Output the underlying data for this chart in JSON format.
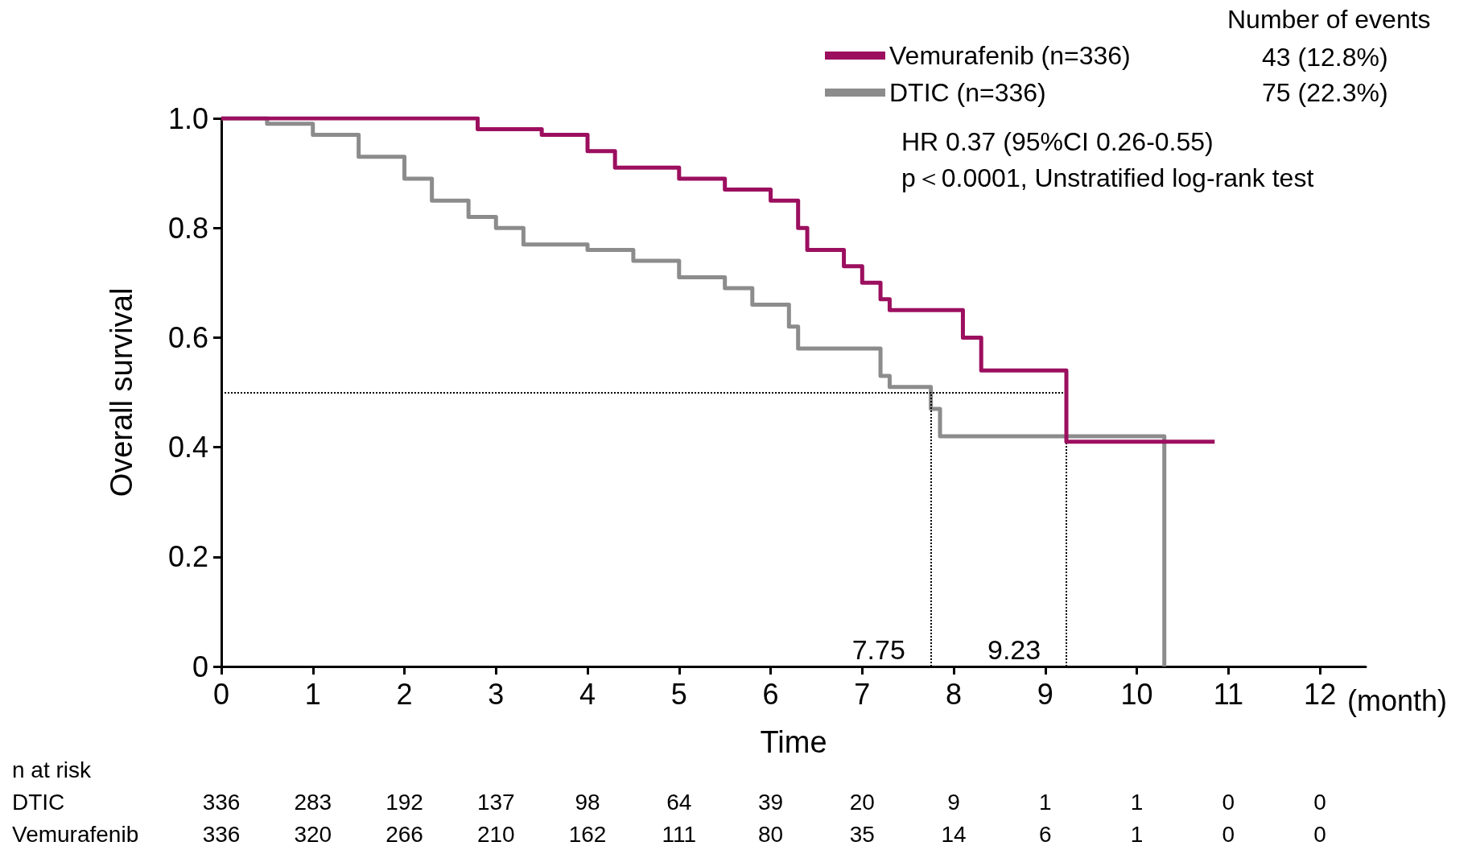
{
  "chart_data": {
    "type": "step",
    "xlabel": "Time",
    "ylabel": "Overall survival",
    "xlim": [
      0,
      12.5
    ],
    "xticks": [
      0,
      1,
      2,
      3,
      4,
      5,
      6,
      7,
      8,
      9,
      10,
      11,
      12
    ],
    "ylim": [
      0,
      1
    ],
    "yticks": [
      0,
      0.2,
      0.4,
      0.6,
      0.8,
      {
        "value": 1,
        "label": "1.0"
      }
    ],
    "grid": false,
    "legend": "top right",
    "marker": "none",
    "line_style": "solid",
    "series": [
      {
        "name": "Vemurafenib (n=336)",
        "color": "#9c0f5f",
        "x": [
          0,
          2.6,
          2.8,
          3.5,
          4,
          4.3,
          5,
          5.5,
          6,
          6.3,
          6.4,
          6.8,
          7,
          7.2,
          7.3,
          8.1,
          8.3,
          9.23,
          10.85
        ],
        "values": [
          1,
          1,
          0.98,
          0.97,
          0.94,
          0.91,
          0.89,
          0.87,
          0.85,
          0.8,
          0.76,
          0.73,
          0.7,
          0.67,
          0.65,
          0.6,
          0.54,
          0.41,
          0.41
        ]
      },
      {
        "name": "DTIC (n=336)",
        "color": "#8c8c8c",
        "x": [
          0,
          0.5,
          1,
          1.5,
          2,
          2.3,
          2.7,
          3,
          3.3,
          4,
          4.5,
          5,
          5.5,
          5.8,
          6.2,
          6.3,
          7.2,
          7.3,
          7.75,
          7.85,
          10.3,
          10.3
        ],
        "values": [
          1,
          0.99,
          0.97,
          0.93,
          0.89,
          0.85,
          0.82,
          0.8,
          0.77,
          0.76,
          0.74,
          0.71,
          0.69,
          0.66,
          0.62,
          0.58,
          0.53,
          0.51,
          0.47,
          0.42,
          0.42,
          0
        ]
      }
    ],
    "ref_lines": [
      {
        "axis": "y",
        "value": 0.5,
        "label": null,
        "color": "#000000",
        "line_style": "dotted"
      },
      {
        "axis": "x",
        "value": 7.75,
        "label": "7.75",
        "color": "#000000",
        "line_style": "dotted"
      },
      {
        "axis": "x",
        "value": 9.23,
        "label": "9.23",
        "color": "#000000",
        "line_style": "dotted"
      }
    ],
    "annotations": [
      "Number of events",
      "43 (12.8%)",
      "75 (22.3%)",
      "HR 0.37 (95%CI 0.26-0.55)",
      "p＜0.0001, Unstratified log-rank test",
      "(month)",
      "n at risk",
      "DTIC",
      "Vemurafenib",
      "336 283 192 137 98 64 39 20 9 1 1 0 0",
      "336 320 266 210 162 111 80 35 14 6 1 0 0"
    ]
  }
}
